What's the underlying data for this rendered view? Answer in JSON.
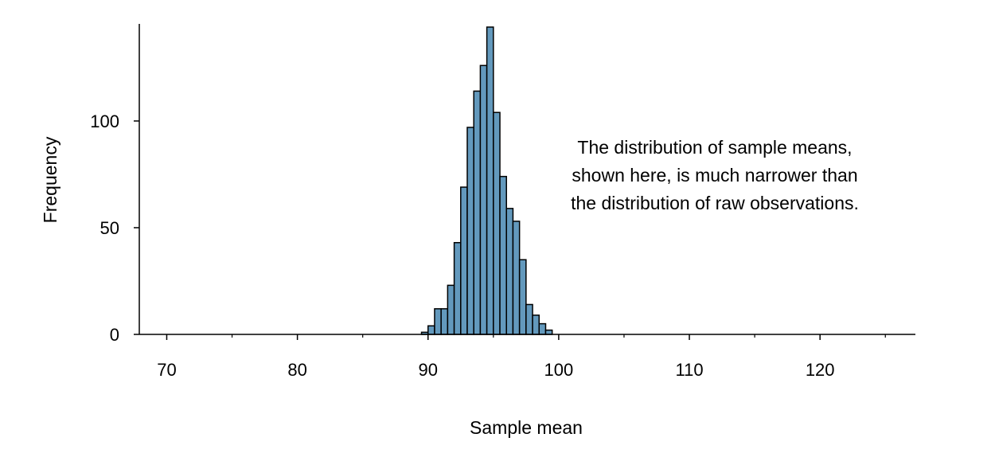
{
  "chart_data": {
    "type": "bar",
    "subtype": "histogram",
    "title": "",
    "xlabel": "Sample mean",
    "ylabel": "Frequency",
    "xlim": [
      67.9,
      127.3
    ],
    "ylim": [
      0,
      145.5
    ],
    "bin_width": 0.5,
    "x_ticks": [
      70,
      80,
      90,
      100,
      110,
      120
    ],
    "x_tick_labels": [
      "70",
      "80",
      "90",
      "100",
      "110",
      "120"
    ],
    "x_minor_ticks": [
      75,
      85,
      95,
      105,
      115,
      125
    ],
    "y_ticks": [
      0,
      50,
      100
    ],
    "y_tick_labels": [
      "0",
      "50",
      "100"
    ],
    "bin_starts": [
      89.5,
      90,
      90.5,
      91,
      91.5,
      92,
      92.5,
      93,
      93.5,
      94,
      94.5,
      95,
      95.5,
      96,
      96.5,
      97,
      97.5,
      98,
      98.5,
      99
    ],
    "values": [
      1,
      4,
      12,
      12,
      23,
      43,
      69,
      97,
      114,
      126,
      144,
      104,
      74,
      59,
      53,
      35,
      14,
      9,
      5,
      2
    ],
    "bar_color": "#6399bd",
    "annotation": [
      "The distribution of sample means,",
      "shown here, is much narrower than",
      "the distribution of raw observations."
    ],
    "grid": false,
    "legend": "none"
  }
}
